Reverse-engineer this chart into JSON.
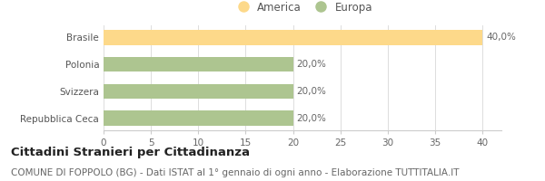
{
  "categories": [
    "Repubblica Ceca",
    "Svizzera",
    "Polonia",
    "Brasile"
  ],
  "values": [
    20.0,
    20.0,
    20.0,
    40.0
  ],
  "colors": [
    "#adc590",
    "#adc590",
    "#adc590",
    "#fdd98a"
  ],
  "bar_labels": [
    "20,0%",
    "20,0%",
    "20,0%",
    "40,0%"
  ],
  "xlim": [
    0,
    42
  ],
  "xticks": [
    0,
    5,
    10,
    15,
    20,
    25,
    30,
    35,
    40
  ],
  "title_bold": "Cittadini Stranieri per Cittadinanza",
  "subtitle": "COMUNE DI FOPPOLO (BG) - Dati ISTAT al 1° gennaio di ogni anno - Elaborazione TUTTITALIA.IT",
  "legend_entries": [
    {
      "label": "America",
      "color": "#fdd98a"
    },
    {
      "label": "Europa",
      "color": "#adc590"
    }
  ],
  "background_color": "#ffffff",
  "bar_height": 0.55,
  "title_fontsize": 9.5,
  "subtitle_fontsize": 7.5,
  "label_fontsize": 7.5,
  "tick_fontsize": 7.5,
  "legend_fontsize": 8.5
}
